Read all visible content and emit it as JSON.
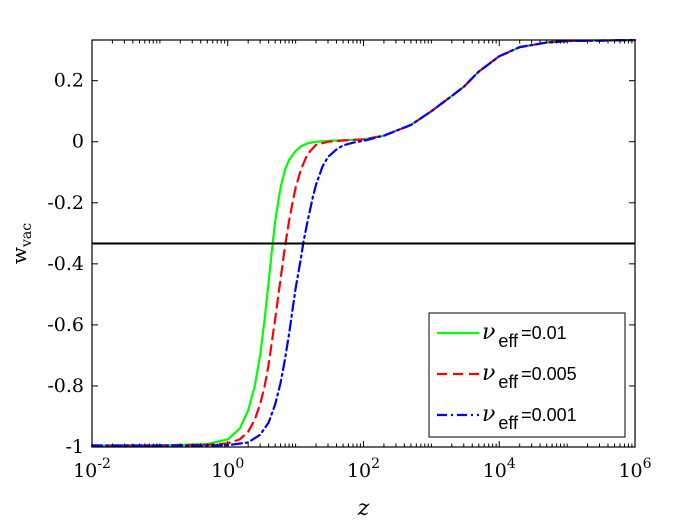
{
  "chart_data": {
    "type": "line",
    "xlabel": "z",
    "ylabel": "w",
    "ylabel_sub": "vac",
    "xscale": "log",
    "xlim": [
      0.01,
      1000000
    ],
    "ylim": [
      -1,
      0.3333
    ],
    "x_ticks": [
      {
        "value": 0.01,
        "base": "10",
        "exp": "-2"
      },
      {
        "value": 1,
        "base": "10",
        "exp": "0"
      },
      {
        "value": 100,
        "base": "10",
        "exp": "2"
      },
      {
        "value": 10000,
        "base": "10",
        "exp": "4"
      },
      {
        "value": 1000000,
        "base": "10",
        "exp": "6"
      }
    ],
    "y_ticks": [
      {
        "value": 0.2,
        "label": "0.2"
      },
      {
        "value": 0,
        "label": "0"
      },
      {
        "value": -0.2,
        "label": "-0.2"
      },
      {
        "value": -0.4,
        "label": "-0.4"
      },
      {
        "value": -0.6,
        "label": "-0.6"
      },
      {
        "value": -0.8,
        "label": "-0.8"
      },
      {
        "value": -1,
        "label": "-1"
      }
    ],
    "reference_line": {
      "y": -0.3333,
      "color": "#000000"
    },
    "grid": false,
    "legend_position": "lower-right",
    "series": [
      {
        "name_symbol": "ν",
        "name_sub": "eff",
        "name_value": "=0.01",
        "color": "#00ff00",
        "dash": "solid",
        "x": [
          0.01,
          0.1,
          0.5,
          1,
          1.5,
          2,
          2.5,
          3,
          3.5,
          4,
          4.5,
          5,
          6,
          7,
          8,
          10,
          12,
          15,
          20,
          30,
          50,
          100,
          200,
          500,
          1000,
          2000,
          3000,
          5000,
          10000,
          20000,
          50000,
          100000,
          1000000
        ],
        "y": [
          -0.995,
          -0.995,
          -0.99,
          -0.975,
          -0.94,
          -0.88,
          -0.8,
          -0.7,
          -0.58,
          -0.46,
          -0.35,
          -0.26,
          -0.15,
          -0.09,
          -0.06,
          -0.03,
          -0.015,
          -0.005,
          0.0,
          0.003,
          0.005,
          0.008,
          0.02,
          0.055,
          0.1,
          0.15,
          0.18,
          0.23,
          0.28,
          0.31,
          0.325,
          0.33,
          0.333
        ]
      },
      {
        "name_symbol": "ν",
        "name_sub": "eff",
        "name_value": "=0.005",
        "color": "#ff0000",
        "dash": "dashed",
        "x": [
          0.01,
          0.1,
          0.5,
          1,
          1.5,
          2,
          2.5,
          3,
          3.5,
          4,
          5,
          6,
          7,
          8,
          9,
          10,
          12,
          15,
          20,
          30,
          50,
          100,
          200,
          500,
          1000,
          2000,
          3000,
          5000,
          10000,
          20000,
          50000,
          100000,
          1000000
        ],
        "y": [
          -0.995,
          -0.995,
          -0.993,
          -0.988,
          -0.975,
          -0.95,
          -0.91,
          -0.86,
          -0.8,
          -0.73,
          -0.58,
          -0.45,
          -0.34,
          -0.26,
          -0.2,
          -0.15,
          -0.09,
          -0.04,
          -0.01,
          0.0,
          0.004,
          0.008,
          0.02,
          0.055,
          0.1,
          0.15,
          0.18,
          0.23,
          0.28,
          0.31,
          0.325,
          0.33,
          0.333
        ]
      },
      {
        "name_symbol": "ν",
        "name_sub": "eff",
        "name_value": "=0.001",
        "color": "#0000ff",
        "dash": "dashdot",
        "x": [
          0.01,
          0.1,
          0.5,
          1,
          2,
          3,
          4,
          5,
          6,
          7,
          8,
          9,
          10,
          12,
          13,
          15,
          18,
          20,
          25,
          30,
          40,
          50,
          70,
          100,
          200,
          500,
          1000,
          2000,
          3000,
          5000,
          10000,
          20000,
          50000,
          100000,
          1000000
        ],
        "y": [
          -0.995,
          -0.995,
          -0.995,
          -0.994,
          -0.985,
          -0.96,
          -0.92,
          -0.86,
          -0.79,
          -0.71,
          -0.63,
          -0.55,
          -0.48,
          -0.38,
          -0.33,
          -0.26,
          -0.18,
          -0.14,
          -0.08,
          -0.05,
          -0.025,
          -0.012,
          -0.003,
          0.003,
          0.02,
          0.055,
          0.1,
          0.15,
          0.18,
          0.23,
          0.28,
          0.31,
          0.325,
          0.33,
          0.333
        ]
      }
    ]
  }
}
